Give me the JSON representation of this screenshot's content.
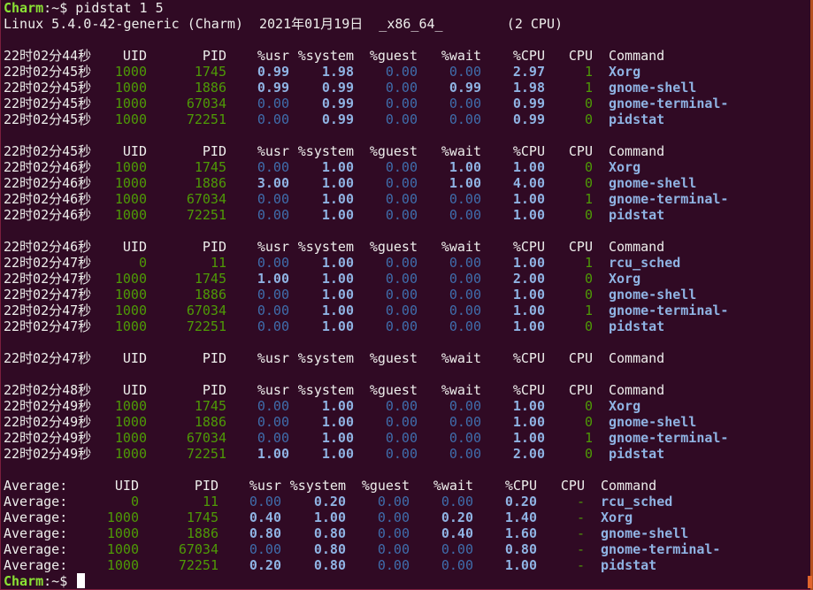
{
  "terminal": {
    "prompt_user": "Charm",
    "prompt_path": ":~$",
    "command": " pidstat 1 5",
    "sysinfo": "Linux 5.4.0-42-generic (Charm)  2021年01月19日  _x86_64_        (2 CPU)",
    "colors": {
      "background": "#300a24",
      "green": "#4e9a06",
      "prompt_green": "#8ae234",
      "bold_blue": "#8fb3e3",
      "dim_blue": "#3f6dab",
      "scrollbar": "#e0642c"
    }
  },
  "columns": [
    "UID",
    "PID",
    "%usr",
    "%system",
    "%guest",
    "%wait",
    "%CPU",
    "CPU",
    "Command"
  ],
  "sections": [
    {
      "header_time": "22时02分44秒",
      "rows": [
        [
          "22时02分45秒",
          "1000",
          "1745",
          "0.99",
          "1.98",
          "0.00",
          "0.00",
          "2.97",
          "1",
          "Xorg"
        ],
        [
          "22时02分45秒",
          "1000",
          "1886",
          "0.99",
          "0.99",
          "0.00",
          "0.99",
          "1.98",
          "1",
          "gnome-shell"
        ],
        [
          "22时02分45秒",
          "1000",
          "67034",
          "0.00",
          "0.99",
          "0.00",
          "0.00",
          "0.99",
          "0",
          "gnome-terminal-"
        ],
        [
          "22时02分45秒",
          "1000",
          "72251",
          "0.00",
          "0.99",
          "0.00",
          "0.00",
          "0.99",
          "0",
          "pidstat"
        ]
      ]
    },
    {
      "header_time": "22时02分45秒",
      "rows": [
        [
          "22时02分46秒",
          "1000",
          "1745",
          "0.00",
          "1.00",
          "0.00",
          "1.00",
          "1.00",
          "0",
          "Xorg"
        ],
        [
          "22时02分46秒",
          "1000",
          "1886",
          "3.00",
          "1.00",
          "0.00",
          "1.00",
          "4.00",
          "0",
          "gnome-shell"
        ],
        [
          "22时02分46秒",
          "1000",
          "67034",
          "0.00",
          "1.00",
          "0.00",
          "0.00",
          "1.00",
          "1",
          "gnome-terminal-"
        ],
        [
          "22时02分46秒",
          "1000",
          "72251",
          "0.00",
          "1.00",
          "0.00",
          "0.00",
          "1.00",
          "0",
          "pidstat"
        ]
      ]
    },
    {
      "header_time": "22时02分46秒",
      "rows": [
        [
          "22时02分47秒",
          "0",
          "11",
          "0.00",
          "1.00",
          "0.00",
          "0.00",
          "1.00",
          "1",
          "rcu_sched"
        ],
        [
          "22时02分47秒",
          "1000",
          "1745",
          "1.00",
          "1.00",
          "0.00",
          "0.00",
          "2.00",
          "0",
          "Xorg"
        ],
        [
          "22时02分47秒",
          "1000",
          "1886",
          "0.00",
          "1.00",
          "0.00",
          "0.00",
          "1.00",
          "0",
          "gnome-shell"
        ],
        [
          "22时02分47秒",
          "1000",
          "67034",
          "0.00",
          "1.00",
          "0.00",
          "0.00",
          "1.00",
          "1",
          "gnome-terminal-"
        ],
        [
          "22时02分47秒",
          "1000",
          "72251",
          "0.00",
          "1.00",
          "0.00",
          "0.00",
          "1.00",
          "0",
          "pidstat"
        ]
      ]
    },
    {
      "header_time": "22时02分47秒",
      "rows": []
    },
    {
      "header_time": "22时02分48秒",
      "rows": [
        [
          "22时02分49秒",
          "1000",
          "1745",
          "0.00",
          "1.00",
          "0.00",
          "0.00",
          "1.00",
          "0",
          "Xorg"
        ],
        [
          "22时02分49秒",
          "1000",
          "1886",
          "0.00",
          "1.00",
          "0.00",
          "0.00",
          "1.00",
          "0",
          "gnome-shell"
        ],
        [
          "22时02分49秒",
          "1000",
          "67034",
          "0.00",
          "1.00",
          "0.00",
          "0.00",
          "1.00",
          "1",
          "gnome-terminal-"
        ],
        [
          "22时02分49秒",
          "1000",
          "72251",
          "1.00",
          "1.00",
          "0.00",
          "0.00",
          "2.00",
          "0",
          "pidstat"
        ]
      ]
    }
  ],
  "average": {
    "header_time": "Average:",
    "rows": [
      [
        "Average:",
        "0",
        "11",
        "0.00",
        "0.20",
        "0.00",
        "0.00",
        "0.20",
        "-",
        "rcu_sched"
      ],
      [
        "Average:",
        "1000",
        "1745",
        "0.40",
        "1.00",
        "0.00",
        "0.20",
        "1.40",
        "-",
        "Xorg"
      ],
      [
        "Average:",
        "1000",
        "1886",
        "0.80",
        "0.80",
        "0.00",
        "0.40",
        "1.60",
        "-",
        "gnome-shell"
      ],
      [
        "Average:",
        "1000",
        "67034",
        "0.00",
        "0.80",
        "0.00",
        "0.00",
        "0.80",
        "-",
        "gnome-terminal-"
      ],
      [
        "Average:",
        "1000",
        "72251",
        "0.20",
        "0.80",
        "0.00",
        "0.00",
        "1.00",
        "-",
        "pidstat"
      ]
    ]
  }
}
